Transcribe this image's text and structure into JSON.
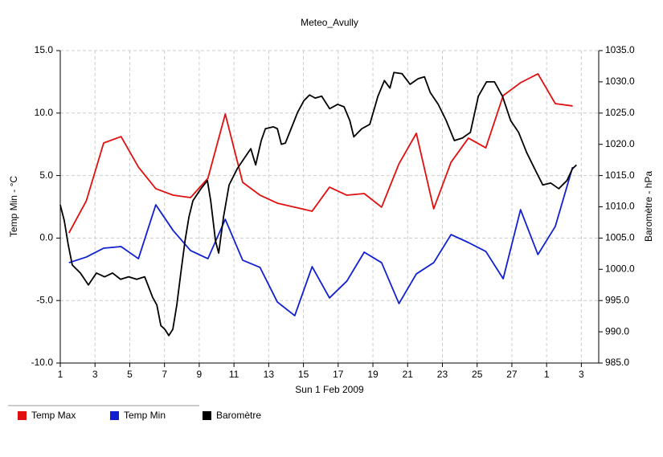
{
  "chart_data": {
    "type": "line",
    "title": "Meteo_Avully",
    "x_label": "Sun 1 Feb 2009",
    "y_label": "Temp Min - °C",
    "y2_label": "Baromètre - hPa",
    "xlim": [
      0,
      31
    ],
    "xticks": [
      {
        "value": 0,
        "label": "1"
      },
      {
        "value": 2,
        "label": "3"
      },
      {
        "value": 4,
        "label": "5"
      },
      {
        "value": 6,
        "label": "7"
      },
      {
        "value": 8,
        "label": "9"
      },
      {
        "value": 10,
        "label": "11"
      },
      {
        "value": 12,
        "label": "13"
      },
      {
        "value": 14,
        "label": "15"
      },
      {
        "value": 16,
        "label": "17"
      },
      {
        "value": 18,
        "label": "19"
      },
      {
        "value": 20,
        "label": "21"
      },
      {
        "value": 22,
        "label": "23"
      },
      {
        "value": 24,
        "label": "25"
      },
      {
        "value": 26,
        "label": "27"
      },
      {
        "value": 28,
        "label": "1"
      },
      {
        "value": 30,
        "label": "3"
      }
    ],
    "ylim": [
      -10,
      15
    ],
    "yticks": [
      {
        "value": -10,
        "label": "-10.0"
      },
      {
        "value": -5,
        "label": "-5.0"
      },
      {
        "value": 0,
        "label": "0.0"
      },
      {
        "value": 5,
        "label": "5.0"
      },
      {
        "value": 10,
        "label": "10.0"
      },
      {
        "value": 15,
        "label": "15.0"
      }
    ],
    "y2lim": [
      985,
      1035
    ],
    "y2ticks": [
      {
        "value": 985,
        "label": "985.0"
      },
      {
        "value": 990,
        "label": "990.0"
      },
      {
        "value": 995,
        "label": "995.0"
      },
      {
        "value": 1000,
        "label": "1000.0"
      },
      {
        "value": 1005,
        "label": "1005.0"
      },
      {
        "value": 1010,
        "label": "1010.0"
      },
      {
        "value": 1015,
        "label": "1015.0"
      },
      {
        "value": 1020,
        "label": "1020.0"
      },
      {
        "value": 1025,
        "label": "1025.0"
      },
      {
        "value": 1030,
        "label": "1030.0"
      },
      {
        "value": 1035,
        "label": "1035.0"
      }
    ],
    "grid": true,
    "series": [
      {
        "name": "Temp Max",
        "color": "#e01010",
        "axis": "y",
        "x": [
          0.5,
          1.5,
          2.5,
          3.5,
          4.5,
          5.5,
          6.5,
          7.5,
          8.5,
          9.5,
          10.5,
          11.5,
          12.5,
          13.5,
          14.5,
          15.5,
          16.5,
          17.5,
          18.5,
          19.5,
          20.5,
          21.5,
          22.5,
          23.5,
          24.5,
          25.5,
          26.5,
          27.5,
          28.5,
          29.5
        ],
        "values": [
          0.41,
          2.98,
          7.61,
          8.12,
          5.68,
          3.95,
          3.43,
          3.24,
          4.78,
          9.92,
          4.46,
          3.43,
          2.79,
          2.47,
          2.15,
          4.07,
          3.43,
          3.56,
          2.47,
          5.94,
          8.38,
          2.34,
          6.07,
          8.0,
          7.22,
          11.4,
          12.43,
          13.14,
          10.76,
          10.57
        ]
      },
      {
        "name": "Temp Min",
        "color": "#1020d0",
        "axis": "y",
        "x": [
          0.5,
          1.5,
          2.5,
          3.5,
          4.5,
          5.5,
          6.5,
          7.5,
          8.5,
          9.5,
          10.5,
          11.5,
          12.5,
          13.5,
          14.5,
          15.5,
          16.5,
          17.5,
          18.5,
          19.5,
          20.5,
          21.5,
          22.5,
          23.5,
          24.5,
          25.5,
          26.5,
          27.5,
          28.5,
          29.5
        ],
        "values": [
          -1.97,
          -1.52,
          -0.81,
          -0.68,
          -1.65,
          2.66,
          0.6,
          -1.0,
          -1.65,
          1.5,
          -1.77,
          -2.35,
          -5.12,
          -6.21,
          -2.29,
          -4.79,
          -3.44,
          -1.13,
          -1.97,
          -5.24,
          -2.87,
          -1.97,
          0.28,
          -0.36,
          -1.07,
          -3.25,
          2.27,
          -1.32,
          0.93,
          5.68
        ]
      },
      {
        "name": "Baromètre",
        "color": "#000000",
        "axis": "y2",
        "x": [
          0,
          0.23,
          0.46,
          0.69,
          1.16,
          1.62,
          2.08,
          2.55,
          3.01,
          3.47,
          3.94,
          4.4,
          4.86,
          5.32,
          5.56,
          5.79,
          6.02,
          6.25,
          6.48,
          6.71,
          6.94,
          7.18,
          7.41,
          7.64,
          8.1,
          8.47,
          8.66,
          8.94,
          9.12,
          9.4,
          9.72,
          10.19,
          10.65,
          10.97,
          11.25,
          11.57,
          11.81,
          12.27,
          12.5,
          12.73,
          12.96,
          13.29,
          13.66,
          14.03,
          14.35,
          14.68,
          15.05,
          15.51,
          15.97,
          16.34,
          16.67,
          16.9,
          17.36,
          17.82,
          18.29,
          18.66,
          18.98,
          19.21,
          19.68,
          20.14,
          20.6,
          20.97,
          21.3,
          21.76,
          22.22,
          22.69,
          23.15,
          23.61,
          24.07,
          24.54,
          25.0,
          25.46,
          25.93,
          26.39,
          26.85,
          27.31,
          27.78,
          28.24,
          28.7,
          29.17,
          29.49,
          29.72
        ],
        "values": [
          1010.3,
          1007.8,
          1003.9,
          1000.7,
          999.4,
          997.5,
          999.4,
          998.8,
          999.4,
          998.4,
          998.8,
          998.4,
          998.8,
          995.5,
          994.3,
          991.0,
          990.4,
          989.4,
          990.4,
          994.3,
          999.4,
          1004.5,
          1008.4,
          1011.0,
          1012.9,
          1014.2,
          1011.0,
          1004.5,
          1002.6,
          1008.4,
          1013.5,
          1016.1,
          1018.0,
          1019.3,
          1016.7,
          1020.6,
          1022.5,
          1022.8,
          1022.5,
          1020.0,
          1020.2,
          1022.5,
          1025.1,
          1027.0,
          1027.9,
          1027.4,
          1027.7,
          1025.7,
          1026.4,
          1026.0,
          1023.8,
          1021.2,
          1022.5,
          1023.2,
          1027.7,
          1030.2,
          1029.0,
          1031.5,
          1031.3,
          1029.6,
          1030.5,
          1030.8,
          1028.3,
          1026.4,
          1023.8,
          1020.6,
          1021.0,
          1021.9,
          1027.7,
          1030.0,
          1030.0,
          1027.7,
          1023.8,
          1021.9,
          1018.7,
          1016.1,
          1013.5,
          1013.8,
          1012.9,
          1014.2,
          1016.1,
          1016.7
        ]
      }
    ]
  }
}
